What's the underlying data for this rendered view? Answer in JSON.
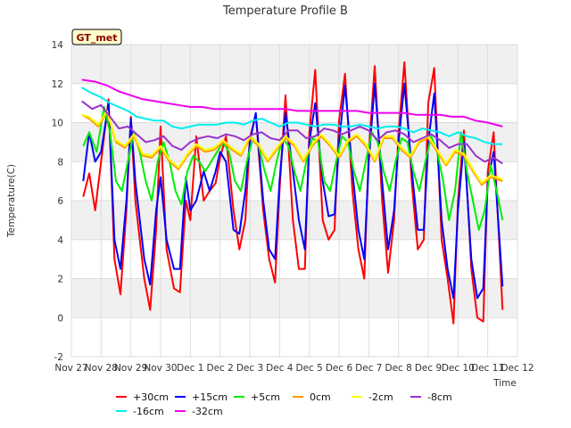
{
  "chart_data": {
    "type": "line",
    "title": "Temperature Profile B",
    "xlabel": "Time",
    "ylabel": "Temperature(C)",
    "badge": "GT_met",
    "xlim": [
      0,
      15
    ],
    "ylim": [
      -2,
      14
    ],
    "x_ticks": [
      {
        "x": 0,
        "label": "Nov 27"
      },
      {
        "x": 1,
        "label": "Nov 28"
      },
      {
        "x": 2,
        "label": "Nov 29"
      },
      {
        "x": 3,
        "label": "Nov 30"
      },
      {
        "x": 4,
        "label": "Dec 1"
      },
      {
        "x": 5,
        "label": "Dec 2"
      },
      {
        "x": 6,
        "label": "Dec 3"
      },
      {
        "x": 7,
        "label": "Dec 4"
      },
      {
        "x": 8,
        "label": "Dec 5"
      },
      {
        "x": 9,
        "label": "Dec 6"
      },
      {
        "x": 10,
        "label": "Dec 7"
      },
      {
        "x": 11,
        "label": "Dec 8"
      },
      {
        "x": 12,
        "label": "Dec 9"
      },
      {
        "x": 13,
        "label": "Dec 10"
      },
      {
        "x": 14,
        "label": "Dec 11"
      },
      {
        "x": 15,
        "label": "Dec 12"
      }
    ],
    "y_ticks": [
      -2,
      0,
      2,
      4,
      6,
      8,
      10,
      12,
      14
    ],
    "grid": true,
    "legend_position": "bottom",
    "series": [
      {
        "name": "+30cm",
        "color": "#ff0000",
        "x": [
          0.4,
          0.6,
          0.8,
          1.0,
          1.25,
          1.45,
          1.65,
          1.85,
          2.0,
          2.15,
          2.45,
          2.65,
          2.85,
          3.0,
          3.2,
          3.45,
          3.65,
          3.85,
          4.0,
          4.2,
          4.45,
          4.65,
          4.85,
          5.0,
          5.2,
          5.45,
          5.65,
          5.85,
          6.0,
          6.2,
          6.45,
          6.65,
          6.85,
          7.0,
          7.2,
          7.45,
          7.65,
          7.85,
          8.0,
          8.2,
          8.45,
          8.65,
          8.85,
          9.0,
          9.2,
          9.45,
          9.65,
          9.85,
          10.0,
          10.2,
          10.45,
          10.65,
          10.85,
          11.0,
          11.2,
          11.45,
          11.65,
          11.85,
          12.0,
          12.2,
          12.45,
          12.65,
          12.85,
          13.0,
          13.2,
          13.45,
          13.65,
          13.85,
          14.0,
          14.2,
          14.5
        ],
        "y": [
          6.2,
          7.4,
          5.5,
          8.0,
          11.2,
          3.0,
          1.2,
          5.5,
          10.3,
          6.0,
          2.0,
          0.4,
          4.5,
          9.8,
          3.5,
          1.5,
          1.3,
          6.0,
          5.0,
          9.3,
          6.0,
          6.5,
          6.9,
          8.2,
          9.3,
          5.5,
          3.5,
          5.0,
          9.2,
          10.4,
          5.5,
          3.0,
          1.8,
          6.5,
          11.4,
          5.0,
          2.5,
          2.5,
          9.5,
          12.7,
          5.0,
          4.0,
          4.5,
          10.1,
          12.5,
          6.5,
          3.5,
          2.0,
          8.5,
          12.9,
          6.0,
          2.3,
          5.0,
          9.5,
          13.1,
          6.8,
          3.5,
          4.0,
          11.0,
          12.8,
          4.0,
          2.0,
          -0.3,
          6.0,
          9.6,
          2.5,
          0.0,
          -0.2,
          7.5,
          9.5,
          0.4
        ]
      },
      {
        "name": "+15cm",
        "color": "#0000ff",
        "x": [
          0.4,
          0.6,
          0.8,
          1.0,
          1.25,
          1.45,
          1.65,
          1.85,
          2.0,
          2.15,
          2.45,
          2.65,
          2.85,
          3.0,
          3.2,
          3.45,
          3.65,
          3.85,
          4.0,
          4.2,
          4.45,
          4.65,
          4.85,
          5.0,
          5.2,
          5.45,
          5.65,
          5.85,
          6.0,
          6.2,
          6.45,
          6.65,
          6.85,
          7.0,
          7.2,
          7.45,
          7.65,
          7.85,
          8.0,
          8.2,
          8.45,
          8.65,
          8.85,
          9.0,
          9.2,
          9.45,
          9.65,
          9.85,
          10.0,
          10.2,
          10.45,
          10.65,
          10.85,
          11.0,
          11.2,
          11.45,
          11.65,
          11.85,
          12.0,
          12.2,
          12.45,
          12.65,
          12.85,
          13.0,
          13.2,
          13.45,
          13.65,
          13.85,
          14.0,
          14.2,
          14.5
        ],
        "y": [
          7.0,
          9.5,
          8.0,
          8.5,
          11.0,
          4.0,
          2.5,
          6.0,
          10.2,
          7.0,
          3.0,
          1.7,
          5.5,
          7.2,
          4.0,
          2.5,
          2.5,
          7.2,
          5.5,
          6.0,
          7.5,
          6.5,
          7.5,
          8.5,
          8.0,
          4.5,
          4.3,
          6.5,
          9.0,
          10.5,
          6.0,
          3.5,
          3.0,
          7.0,
          10.5,
          7.5,
          5.0,
          3.5,
          9.0,
          11.0,
          7.0,
          5.2,
          5.3,
          9.0,
          11.9,
          7.5,
          4.5,
          3.0,
          8.0,
          12.0,
          7.0,
          3.5,
          5.5,
          9.0,
          12.0,
          7.5,
          4.5,
          4.5,
          9.0,
          11.5,
          5.0,
          2.5,
          1.0,
          5.5,
          9.0,
          3.0,
          1.0,
          1.5,
          7.0,
          8.5,
          1.6
        ]
      },
      {
        "name": "+5cm",
        "color": "#00ee00",
        "x": [
          0.4,
          0.6,
          0.85,
          1.1,
          1.3,
          1.5,
          1.7,
          1.9,
          2.1,
          2.3,
          2.5,
          2.7,
          2.9,
          3.1,
          3.3,
          3.5,
          3.7,
          3.9,
          4.1,
          4.3,
          4.5,
          4.7,
          4.9,
          5.1,
          5.3,
          5.5,
          5.7,
          5.9,
          6.1,
          6.3,
          6.5,
          6.7,
          6.9,
          7.1,
          7.3,
          7.5,
          7.7,
          7.9,
          8.1,
          8.3,
          8.5,
          8.7,
          8.9,
          9.1,
          9.3,
          9.5,
          9.7,
          9.9,
          10.1,
          10.3,
          10.5,
          10.7,
          10.9,
          11.1,
          11.3,
          11.5,
          11.7,
          11.9,
          12.1,
          12.3,
          12.5,
          12.7,
          12.9,
          13.1,
          13.3,
          13.5,
          13.7,
          13.9,
          14.1,
          14.3,
          14.5
        ],
        "y": [
          8.8,
          9.5,
          8.5,
          10.8,
          9.5,
          7.0,
          6.5,
          8.0,
          9.5,
          8.5,
          7.0,
          6.0,
          8.0,
          9.0,
          8.0,
          6.5,
          5.8,
          7.5,
          8.3,
          8.0,
          7.5,
          8.0,
          8.5,
          9.0,
          8.5,
          7.0,
          6.5,
          8.0,
          9.2,
          8.8,
          7.5,
          6.5,
          8.0,
          9.2,
          8.8,
          7.5,
          6.5,
          8.0,
          9.2,
          9.0,
          7.0,
          6.5,
          8.0,
          9.3,
          9.0,
          7.5,
          6.5,
          8.0,
          9.5,
          9.0,
          7.5,
          6.5,
          8.0,
          9.2,
          9.0,
          7.5,
          6.5,
          8.0,
          9.3,
          8.5,
          7.0,
          5.0,
          6.5,
          9.5,
          7.5,
          6.0,
          4.5,
          5.5,
          7.8,
          6.5,
          5.0
        ]
      },
      {
        "name": "0cm",
        "color": "#ff9900",
        "x": [
          0.35,
          0.6,
          0.9,
          1.2,
          1.5,
          1.8,
          2.1,
          2.4,
          2.7,
          3.0,
          3.3,
          3.6,
          3.9,
          4.2,
          4.5,
          4.8,
          5.1,
          5.4,
          5.7,
          6.0,
          6.3,
          6.6,
          6.9,
          7.2,
          7.5,
          7.8,
          8.1,
          8.4,
          8.7,
          9.0,
          9.3,
          9.6,
          9.9,
          10.2,
          10.5,
          10.8,
          11.1,
          11.4,
          11.7,
          12.0,
          12.3,
          12.6,
          12.9,
          13.2,
          13.5,
          13.8,
          14.1,
          14.5
        ],
        "y": [
          10.4,
          10.2,
          9.8,
          10.5,
          9.0,
          8.7,
          9.3,
          8.3,
          8.2,
          8.7,
          8.0,
          7.6,
          8.3,
          8.8,
          8.5,
          8.6,
          9.0,
          8.6,
          8.3,
          9.2,
          8.8,
          8.0,
          8.6,
          9.2,
          8.8,
          8.0,
          8.8,
          9.3,
          8.8,
          8.2,
          9.0,
          9.3,
          8.8,
          8.0,
          9.2,
          9.2,
          8.6,
          8.2,
          9.0,
          9.2,
          8.5,
          7.8,
          8.5,
          8.3,
          7.5,
          6.8,
          7.2,
          7.0
        ]
      },
      {
        "name": "-2cm",
        "color": "#ffff00",
        "x": [
          0.35,
          0.6,
          0.9,
          1.2,
          1.5,
          1.8,
          2.1,
          2.4,
          2.7,
          3.0,
          3.3,
          3.6,
          3.9,
          4.2,
          4.5,
          4.8,
          5.1,
          5.4,
          5.7,
          6.0,
          6.3,
          6.6,
          6.9,
          7.2,
          7.5,
          7.8,
          8.1,
          8.4,
          8.7,
          9.0,
          9.3,
          9.6,
          9.9,
          10.2,
          10.5,
          10.8,
          11.1,
          11.4,
          11.7,
          12.0,
          12.3,
          12.6,
          12.9,
          13.2,
          13.5,
          13.8,
          14.1,
          14.5
        ],
        "y": [
          10.4,
          10.3,
          9.9,
          10.6,
          9.1,
          8.8,
          9.4,
          8.4,
          8.3,
          8.8,
          8.1,
          7.7,
          8.4,
          8.9,
          8.6,
          8.7,
          9.1,
          8.7,
          8.4,
          9.3,
          8.9,
          8.1,
          8.7,
          9.3,
          8.9,
          8.1,
          8.9,
          9.4,
          8.9,
          8.3,
          9.1,
          9.4,
          8.9,
          8.1,
          9.3,
          9.3,
          8.7,
          8.3,
          9.1,
          9.3,
          8.6,
          7.9,
          8.6,
          8.4,
          7.6,
          6.9,
          7.3,
          7.1
        ]
      },
      {
        "name": "-8cm",
        "color": "#9933cc",
        "x": [
          0.35,
          0.7,
          1.0,
          1.3,
          1.6,
          1.9,
          2.2,
          2.5,
          2.8,
          3.1,
          3.4,
          3.7,
          4.0,
          4.3,
          4.6,
          4.9,
          5.2,
          5.5,
          5.8,
          6.1,
          6.4,
          6.7,
          7.0,
          7.3,
          7.6,
          7.9,
          8.2,
          8.5,
          8.8,
          9.1,
          9.4,
          9.7,
          10.0,
          10.3,
          10.6,
          10.9,
          11.2,
          11.5,
          11.8,
          12.1,
          12.4,
          12.7,
          13.0,
          13.3,
          13.6,
          13.9,
          14.2,
          14.5
        ],
        "y": [
          11.1,
          10.7,
          10.9,
          10.3,
          9.7,
          9.8,
          9.4,
          9.0,
          9.1,
          9.3,
          8.8,
          8.6,
          9.0,
          9.2,
          9.3,
          9.2,
          9.4,
          9.3,
          9.1,
          9.4,
          9.5,
          9.2,
          9.1,
          9.6,
          9.6,
          9.2,
          9.3,
          9.7,
          9.6,
          9.4,
          9.6,
          9.8,
          9.6,
          9.1,
          9.5,
          9.6,
          9.4,
          9.0,
          9.2,
          9.4,
          9.1,
          8.7,
          8.9,
          8.9,
          8.3,
          8.0,
          8.2,
          7.9
        ]
      },
      {
        "name": "-16cm",
        "color": "#00eeee",
        "x": [
          0.35,
          0.7,
          1.0,
          1.3,
          1.6,
          1.9,
          2.2,
          2.5,
          2.8,
          3.1,
          3.4,
          3.7,
          4.0,
          4.3,
          4.6,
          4.9,
          5.2,
          5.5,
          5.8,
          6.1,
          6.4,
          6.7,
          7.0,
          7.3,
          7.6,
          7.9,
          8.2,
          8.5,
          8.8,
          9.1,
          9.4,
          9.7,
          10.0,
          10.3,
          10.6,
          10.9,
          11.2,
          11.5,
          11.8,
          12.1,
          12.4,
          12.7,
          13.0,
          13.3,
          13.6,
          13.9,
          14.2,
          14.5
        ],
        "y": [
          11.8,
          11.5,
          11.3,
          11.0,
          10.8,
          10.6,
          10.3,
          10.2,
          10.1,
          10.1,
          9.8,
          9.7,
          9.8,
          9.9,
          9.9,
          9.9,
          10.0,
          10.0,
          9.9,
          10.1,
          10.2,
          10.0,
          9.8,
          10.0,
          10.0,
          9.9,
          9.8,
          9.9,
          9.9,
          9.8,
          9.8,
          9.9,
          9.8,
          9.7,
          9.8,
          9.8,
          9.7,
          9.5,
          9.7,
          9.6,
          9.5,
          9.3,
          9.5,
          9.3,
          9.2,
          9.0,
          8.9,
          8.9
        ]
      },
      {
        "name": "-32cm",
        "color": "#ee00ee",
        "x": [
          0.35,
          0.8,
          1.2,
          1.6,
          2.0,
          2.4,
          2.8,
          3.2,
          3.6,
          4.0,
          4.4,
          4.8,
          5.2,
          5.6,
          6.0,
          6.4,
          6.8,
          7.2,
          7.6,
          8.0,
          8.4,
          8.8,
          9.2,
          9.6,
          10.0,
          10.4,
          10.8,
          11.2,
          11.6,
          12.0,
          12.4,
          12.8,
          13.2,
          13.6,
          14.0,
          14.5
        ],
        "y": [
          12.2,
          12.1,
          11.9,
          11.6,
          11.4,
          11.2,
          11.1,
          11.0,
          10.9,
          10.8,
          10.8,
          10.7,
          10.7,
          10.7,
          10.7,
          10.7,
          10.7,
          10.7,
          10.6,
          10.6,
          10.6,
          10.6,
          10.6,
          10.6,
          10.5,
          10.5,
          10.5,
          10.5,
          10.4,
          10.4,
          10.4,
          10.3,
          10.3,
          10.1,
          10.0,
          9.8
        ]
      }
    ]
  }
}
